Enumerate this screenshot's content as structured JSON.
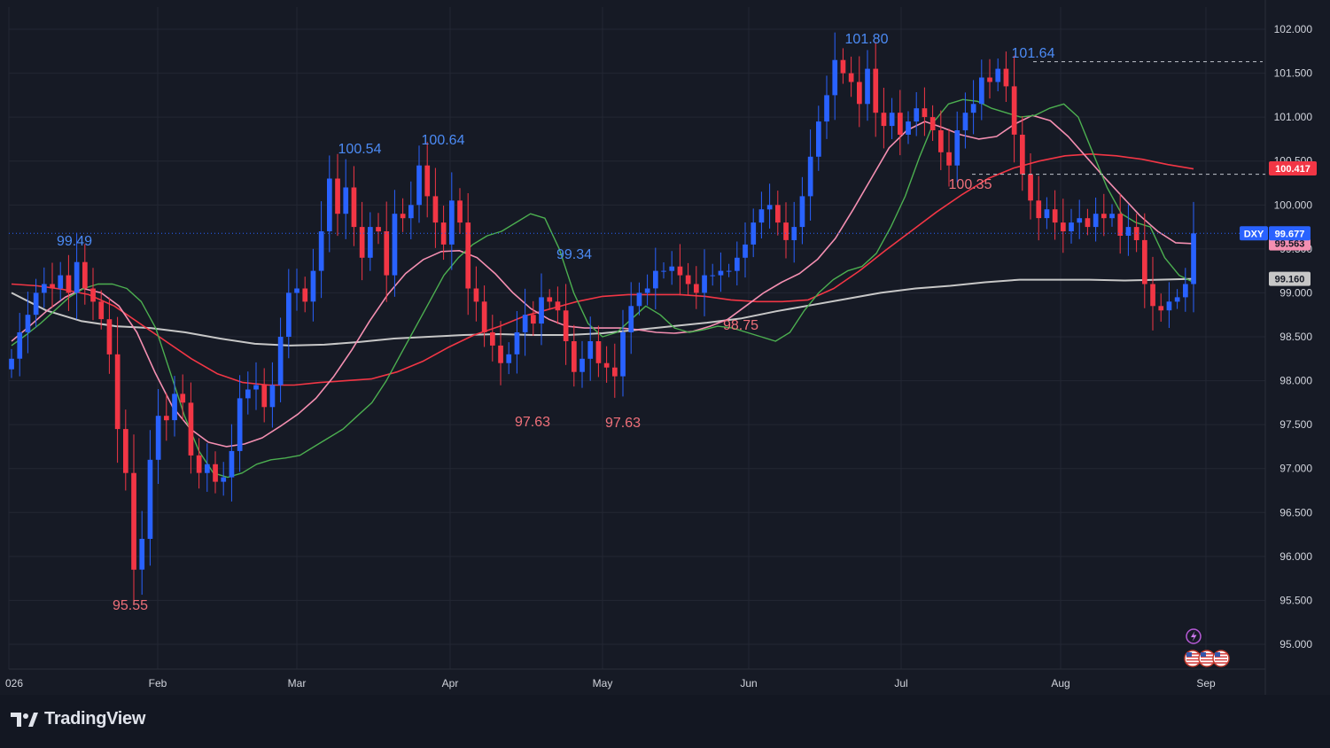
{
  "branding": {
    "name": "TradingView"
  },
  "colors": {
    "background": "#161a25",
    "up": "#2962ff",
    "down": "#f23645",
    "ma_fast": "#4caf50",
    "ma_mid": "#f48fb1",
    "ma_slow": "#f23645",
    "ma_long": "#c7c7c7"
  },
  "price_tags": {
    "symbol": "DXY",
    "last": "99.677",
    "pink_ma": "99.563",
    "red_ma": "100.417",
    "grey_ma": "99.160"
  },
  "chart_data": {
    "type": "candlestick",
    "symbol": "DXY",
    "ylim": [
      94.7,
      102.25
    ],
    "y_ticks": [
      "95.000",
      "95.500",
      "96.000",
      "96.500",
      "97.000",
      "97.500",
      "98.000",
      "98.500",
      "99.000",
      "99.500",
      "100.000",
      "100.500",
      "101.000",
      "101.500",
      "102.000"
    ],
    "x_labels": [
      "026",
      "Feb",
      "Mar",
      "Apr",
      "May",
      "Jun",
      "Jul",
      "Aug",
      "Sep"
    ],
    "annotations": [
      {
        "label": "99.49",
        "type": "high"
      },
      {
        "label": "100.54",
        "type": "high"
      },
      {
        "label": "100.64",
        "type": "high"
      },
      {
        "label": "99.34",
        "type": "high"
      },
      {
        "label": "101.80",
        "type": "high"
      },
      {
        "label": "101.64",
        "type": "high"
      },
      {
        "label": "95.55",
        "type": "low"
      },
      {
        "label": "97.63",
        "type": "low"
      },
      {
        "label": "97.63",
        "type": "low"
      },
      {
        "label": "98.75",
        "type": "low"
      },
      {
        "label": "100.35",
        "type": "low"
      }
    ],
    "closes": [
      98.25,
      98.55,
      98.75,
      99.0,
      99.1,
      99.05,
      99.2,
      99.0,
      99.35,
      99.05,
      98.9,
      98.7,
      98.3,
      97.45,
      96.95,
      95.85,
      96.2,
      97.1,
      97.6,
      97.55,
      97.85,
      97.75,
      97.15,
      96.95,
      97.05,
      96.85,
      96.9,
      97.2,
      97.8,
      97.9,
      97.95,
      97.7,
      97.95,
      98.5,
      99.0,
      99.05,
      98.9,
      99.25,
      99.7,
      100.3,
      99.9,
      100.2,
      99.75,
      99.4,
      99.75,
      99.7,
      99.2,
      99.9,
      99.85,
      100.0,
      100.45,
      100.1,
      99.8,
      99.55,
      100.05,
      99.8,
      99.05,
      98.9,
      98.55,
      98.4,
      98.2,
      98.3,
      98.55,
      98.75,
      98.65,
      98.95,
      98.9,
      98.8,
      98.45,
      98.1,
      98.25,
      98.45,
      98.2,
      98.15,
      98.05,
      98.55,
      98.85,
      99.0,
      99.05,
      99.25,
      99.25,
      99.3,
      99.2,
      99.1,
      99.0,
      99.2,
      99.2,
      99.25,
      99.25,
      99.4,
      99.55,
      99.8,
      99.95,
      100.0,
      99.8,
      99.6,
      99.75,
      100.1,
      100.55,
      100.95,
      101.25,
      101.65,
      101.5,
      101.4,
      101.15,
      101.55,
      101.05,
      100.9,
      101.05,
      100.8,
      100.95,
      101.1,
      101.0,
      100.85,
      100.6,
      100.45,
      100.85,
      101.05,
      101.15,
      101.45,
      101.4,
      101.55,
      101.35,
      100.8,
      100.35,
      100.05,
      99.85,
      99.95,
      99.8,
      99.7,
      99.8,
      99.85,
      99.75,
      99.9,
      99.85,
      99.9,
      99.65,
      99.75,
      99.6,
      99.1,
      98.85,
      98.8,
      98.9,
      98.95,
      99.1,
      99.677
    ],
    "ma_fast": [
      98.4,
      98.52,
      98.65,
      98.8,
      98.95,
      99.05,
      99.1,
      99.1,
      99.05,
      98.9,
      98.6,
      98.1,
      97.6,
      97.2,
      96.95,
      96.9,
      96.95,
      97.05,
      97.1,
      97.12,
      97.15,
      97.25,
      97.35,
      97.45,
      97.6,
      97.75,
      98.0,
      98.3,
      98.6,
      98.9,
      99.2,
      99.4,
      99.55,
      99.65,
      99.7,
      99.8,
      99.9,
      99.85,
      99.5,
      99.0,
      98.65,
      98.5,
      98.55,
      98.7,
      98.85,
      98.75,
      98.6,
      98.55,
      98.58,
      98.62,
      98.6,
      98.55,
      98.5,
      98.45,
      98.55,
      98.8,
      99.0,
      99.15,
      99.25,
      99.3,
      99.45,
      99.75,
      100.1,
      100.55,
      100.95,
      101.15,
      101.2,
      101.18,
      101.1,
      101.05,
      101.0,
      101.02,
      101.1,
      101.15,
      101.0,
      100.6,
      100.2,
      99.9,
      99.8,
      99.75,
      99.4,
      99.2,
      99.12
    ],
    "ma_mid": [
      98.45,
      98.62,
      98.8,
      98.95,
      99.05,
      99.0,
      98.85,
      98.55,
      98.1,
      97.7,
      97.45,
      97.3,
      97.25,
      97.28,
      97.35,
      97.48,
      97.62,
      97.8,
      98.05,
      98.35,
      98.68,
      98.98,
      99.22,
      99.38,
      99.47,
      99.48,
      99.4,
      99.22,
      99.0,
      98.82,
      98.7,
      98.62,
      98.6,
      98.6,
      98.6,
      98.58,
      98.55,
      98.54,
      98.56,
      98.62,
      98.7,
      98.85,
      99.0,
      99.12,
      99.22,
      99.38,
      99.62,
      99.95,
      100.3,
      100.65,
      100.85,
      100.95,
      100.88,
      100.8,
      100.75,
      100.78,
      100.92,
      101.02,
      100.96,
      100.78,
      100.55,
      100.32,
      100.1,
      99.88,
      99.7,
      99.57,
      99.56
    ],
    "ma_slow": [
      99.1,
      99.08,
      99.04,
      98.98,
      98.85,
      98.65,
      98.45,
      98.25,
      98.08,
      97.98,
      97.95,
      97.95,
      97.98,
      98.0,
      98.02,
      98.1,
      98.22,
      98.38,
      98.52,
      98.62,
      98.74,
      98.82,
      98.9,
      98.96,
      98.98,
      98.98,
      98.98,
      98.96,
      98.92,
      98.9,
      98.9,
      98.92,
      99.05,
      99.25,
      99.48,
      99.7,
      99.92,
      100.12,
      100.3,
      100.42,
      100.5,
      100.56,
      100.58,
      100.56,
      100.52,
      100.46,
      100.41
    ],
    "ma_long": [
      99.0,
      98.8,
      98.68,
      98.62,
      98.6,
      98.55,
      98.48,
      98.42,
      98.4,
      98.41,
      98.44,
      98.48,
      98.5,
      98.52,
      98.53,
      98.52,
      98.52,
      98.54,
      98.58,
      98.62,
      98.66,
      98.71,
      98.79,
      98.86,
      98.93,
      99.0,
      99.05,
      99.08,
      99.12,
      99.15,
      99.15,
      99.15,
      99.14,
      99.15,
      99.16
    ]
  }
}
